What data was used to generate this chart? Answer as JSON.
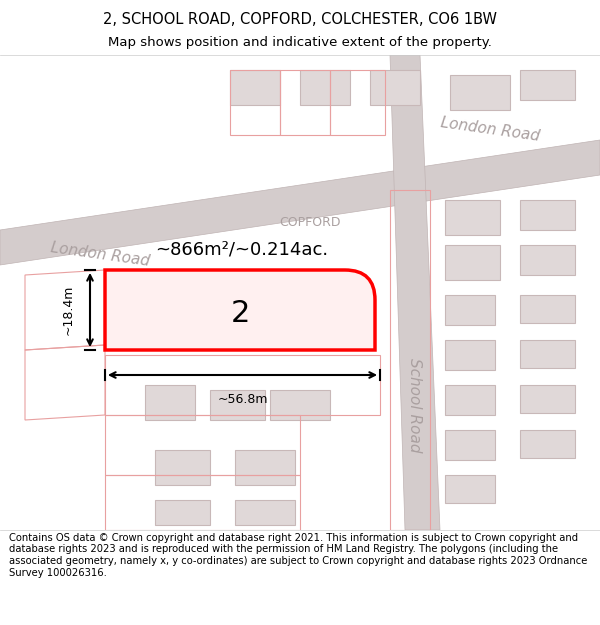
{
  "title": "2, SCHOOL ROAD, COPFORD, COLCHESTER, CO6 1BW",
  "subtitle": "Map shows position and indicative extent of the property.",
  "footer": "Contains OS data © Crown copyright and database right 2021. This information is subject to Crown copyright and database rights 2023 and is reproduced with the permission of HM Land Registry. The polygons (including the associated geometry, namely x, y co-ordinates) are subject to Crown copyright and database rights 2023 Ordnance Survey 100026316.",
  "bg_color": "#f5f0f0",
  "map_bg": "#ffffff",
  "road_fill": "#e8e0e0",
  "road_stroke": "#c8b8b8",
  "building_fill": "#d8d0d0",
  "building_stroke": "#c8b8b8",
  "highlight_fill": "#ffe8e8",
  "highlight_stroke": "#ff0000",
  "highlight_lw": 2.5,
  "dim_color": "#222222",
  "label_color": "#888888",
  "road_label_color": "#888888",
  "area_text": "~866m²/~0.214ac.",
  "width_text": "~56.8m",
  "height_text": "~18.4m",
  "plot_number": "2",
  "road_name_london": "London Road",
  "road_name_copford": "COPFORD",
  "road_name_school": "School Road",
  "figsize": [
    6.0,
    6.25
  ],
  "dpi": 100
}
